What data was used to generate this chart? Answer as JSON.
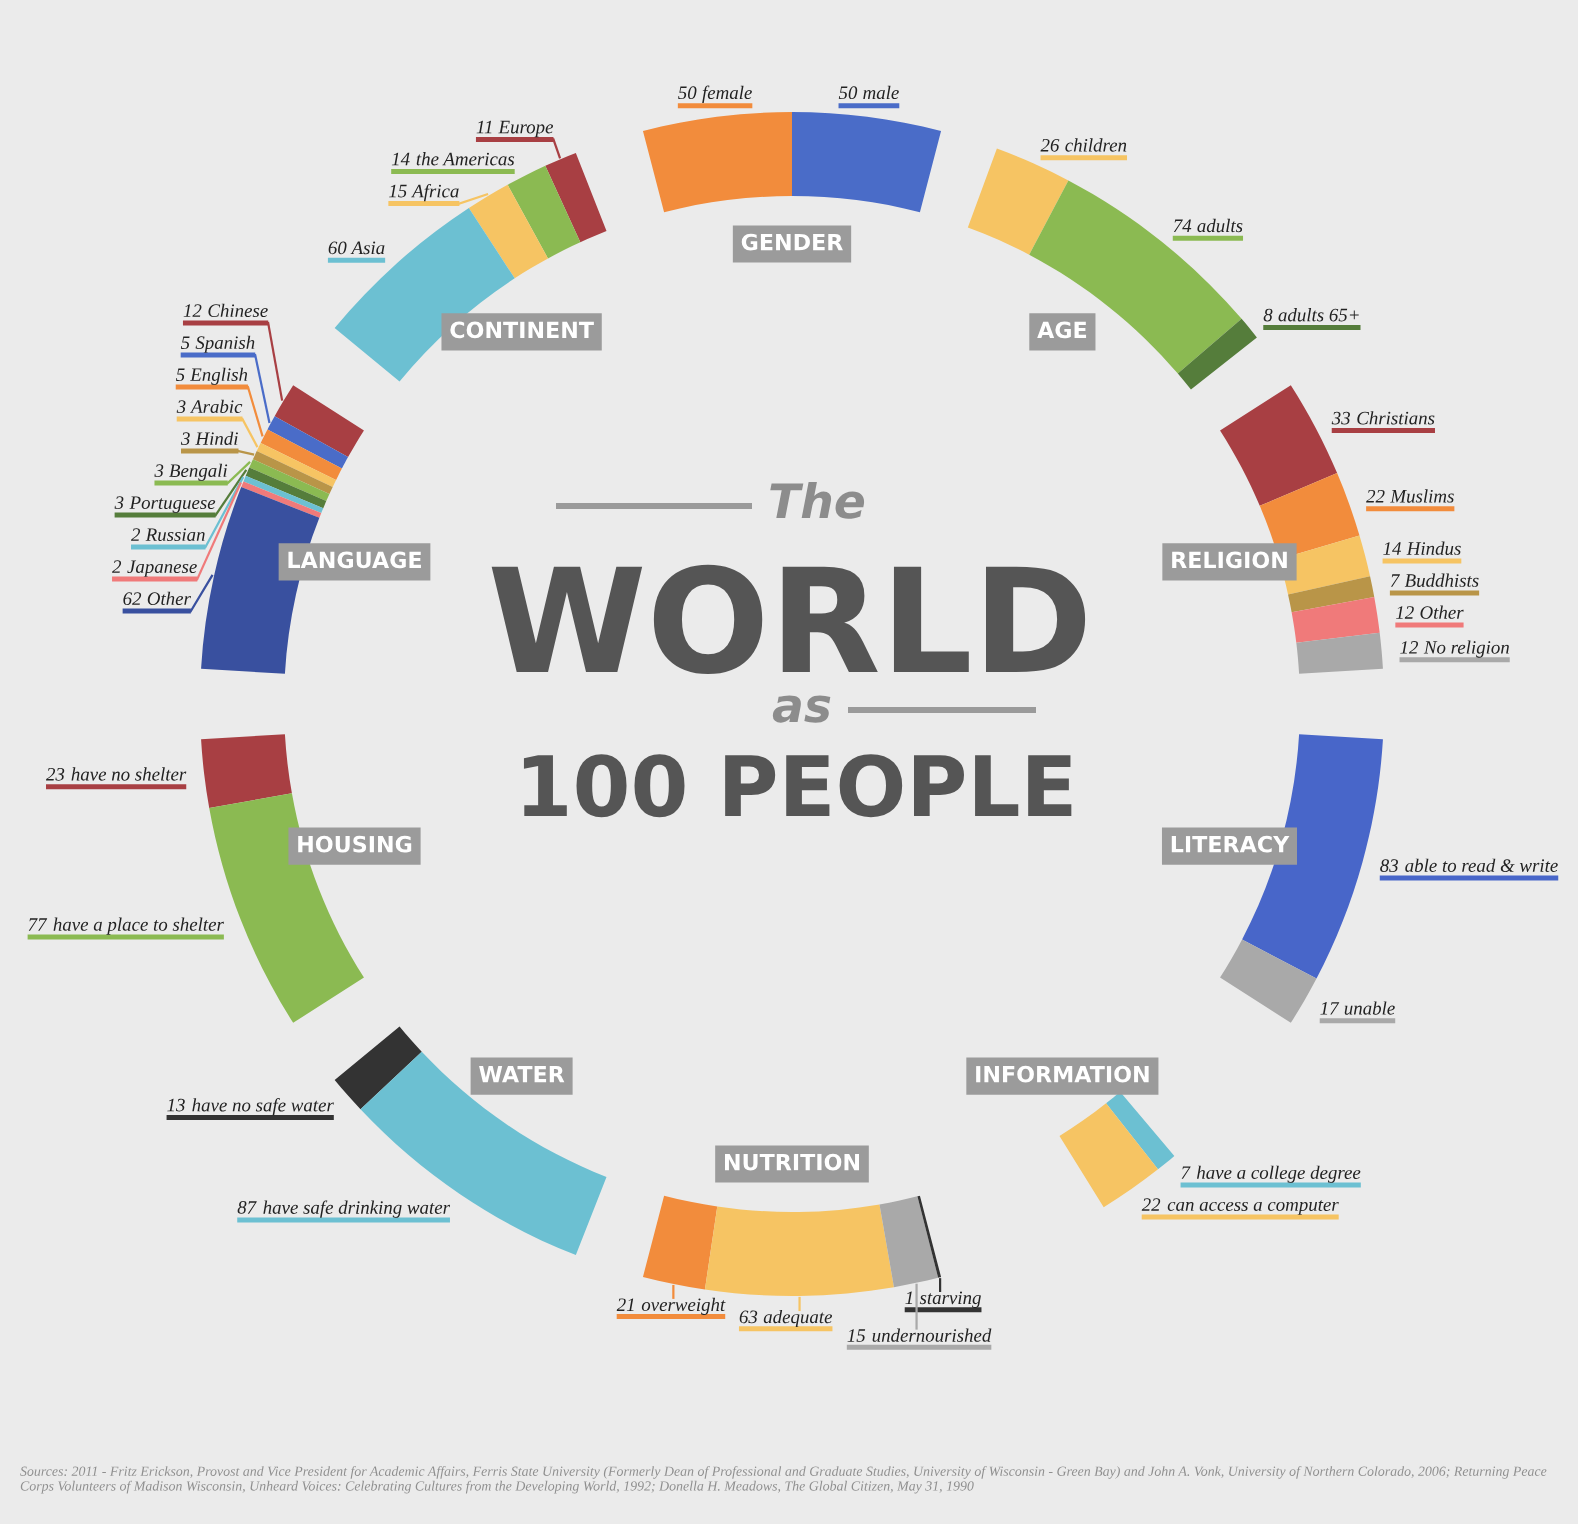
{
  "chart_data": {
    "type": "donut",
    "title": "The\nWORLD\nas\n100 PEOPLE",
    "categories": [
      "female",
      "male",
      null,
      "children",
      "adults",
      "adults 65+",
      null,
      "Christians",
      "Muslims",
      "Hindus",
      "Buddhists",
      "Other",
      "No religion",
      null,
      "able to read & write",
      "unable",
      null,
      "have a college degree",
      "can access a computer",
      null,
      "overweight",
      "adequate",
      "undernourished",
      "starving",
      null,
      "have no safe water",
      "have safe drinking water",
      null,
      "have no shelter",
      "have a place to shelter",
      null,
      "Chinese",
      "Spanish",
      "English",
      "Arabic",
      "Hindi",
      "Bengali",
      "Portuguese",
      "Russian",
      "Japanese",
      "Other",
      null,
      "Europe",
      "the Americas",
      "Africa",
      "Asia"
    ],
    "values": [
      50,
      50,
      null,
      26,
      74,
      8,
      null,
      33,
      22,
      14,
      7,
      12,
      12,
      null,
      83,
      17,
      null,
      7,
      22,
      null,
      21,
      63,
      15,
      1,
      null,
      13,
      87,
      null,
      23,
      77,
      null,
      12,
      5,
      5,
      3,
      3,
      3,
      3,
      2,
      2,
      62,
      null,
      11,
      14,
      15,
      60
    ],
    "colors": [
      "#f28c3c",
      "#4a6cc8",
      null,
      "#f6c463",
      "#8bba52",
      "#557d3b",
      null,
      "#a83f43",
      "#f28c3c",
      "#f6c463",
      "#b99548",
      "#f07a7a",
      "#a9a9a9",
      null,
      "#4866c9",
      "#a9a9a9",
      null,
      "#6cc0d2",
      "#f6c463",
      null,
      "#f28c3c",
      "#f6c463",
      "#a9a9a9",
      "#333333",
      null,
      "#333333",
      "#6cc0d2",
      null,
      "#a83f43",
      "#8bba52",
      null,
      "#a83f43",
      "#4a6cc8",
      "#f28c3c",
      "#f6c463",
      "#b99548",
      "#8bba52",
      "#557d3b",
      "#6cc0d2",
      "#f07a7a",
      "#39509f",
      null,
      "#a83f43",
      "#8bba52",
      "#f6c463",
      "#6cc0d2"
    ],
    "data_labels": true,
    "annotations": [
      "GENDER",
      "AGE",
      "RELIGION",
      "LITERACY",
      "INFORMATION",
      "NUTRITION",
      "WATER",
      "HOUSING",
      "LANGUAGE",
      "CONTINENT",
      "Sources: 2011 - Fritz Erickson, Provost and Vice President for Academic Affairs, Ferris State University (Formerly Dean of Professional and Graduate Studies, University of Wisconsin - Green Bay) and John A. Vonk, University of Northern Colorado, 2006; Returning Peace Corps Volunteers of Madison Wisconsin, Unheard Voices: Celebrating Cultures from the Developing World, 1992; Donella H. Meadows, The Global Citizen, May 31, 1990"
    ]
  }
}
